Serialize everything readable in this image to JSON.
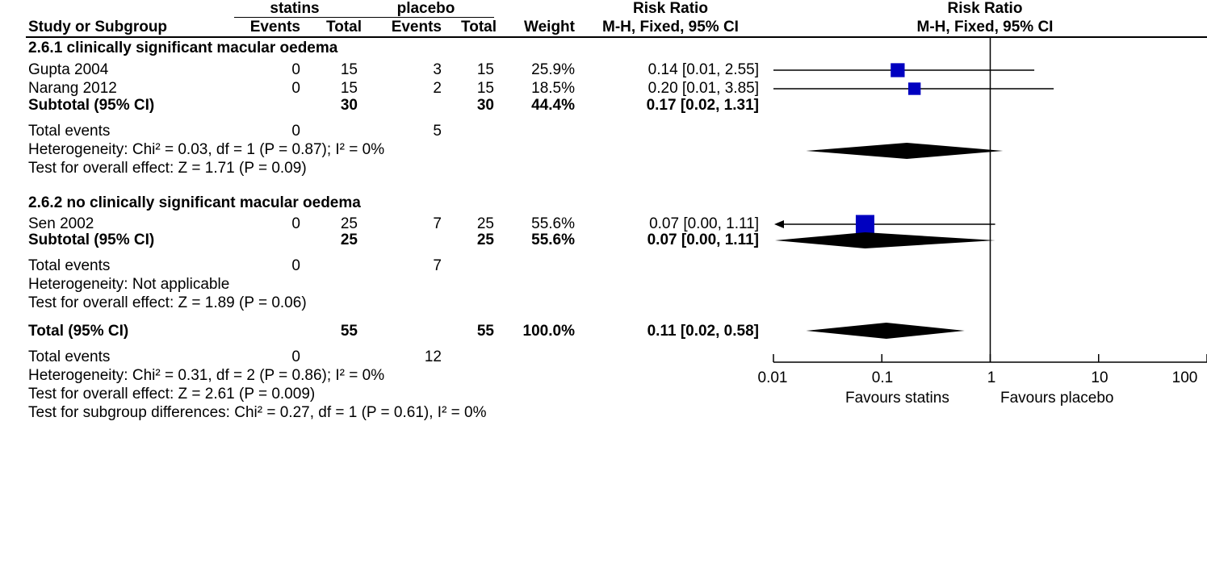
{
  "header": {
    "group1": "statins",
    "group2": "placebo",
    "rr_col_title": "Risk Ratio",
    "rr_col_method": "M-H, Fixed, 95% CI",
    "plot_title": "Risk Ratio",
    "plot_method": "M-H, Fixed, 95% CI",
    "study_col": "Study or Subgroup",
    "events1": "Events",
    "total1": "Total",
    "events2": "Events",
    "total2": "Total",
    "weight": "Weight"
  },
  "subgroup1": {
    "title": "2.6.1 clinically significant macular oedema",
    "studies": [
      {
        "name": "Gupta 2004",
        "e1": "0",
        "t1": "15",
        "e2": "3",
        "t2": "15",
        "w": "25.9%",
        "ci": "0.14 [0.01, 2.55]"
      },
      {
        "name": "Narang 2012",
        "e1": "0",
        "t1": "15",
        "e2": "2",
        "t2": "15",
        "w": "18.5%",
        "ci": "0.20 [0.01, 3.85]"
      }
    ],
    "subtotal": {
      "label": "Subtotal (95% CI)",
      "t1": "30",
      "t2": "30",
      "w": "44.4%",
      "ci": "0.17 [0.02, 1.31]"
    },
    "total_events": {
      "label": "Total events",
      "e1": "0",
      "e2": "5"
    },
    "heterogeneity": "Heterogeneity: Chi² = 0.03, df = 1 (P = 0.87); I² = 0%",
    "overall": "Test for overall effect: Z = 1.71 (P = 0.09)"
  },
  "subgroup2": {
    "title": "2.6.2 no clinically significant macular oedema",
    "studies": [
      {
        "name": "Sen 2002",
        "e1": "0",
        "t1": "25",
        "e2": "7",
        "t2": "25",
        "w": "55.6%",
        "ci": "0.07 [0.00, 1.11]"
      }
    ],
    "subtotal": {
      "label": "Subtotal (95% CI)",
      "t1": "25",
      "t2": "25",
      "w": "55.6%",
      "ci": "0.07 [0.00, 1.11]"
    },
    "total_events": {
      "label": "Total events",
      "e1": "0",
      "e2": "7"
    },
    "heterogeneity": "Heterogeneity: Not applicable",
    "overall": "Test for overall effect: Z = 1.89 (P = 0.06)"
  },
  "total": {
    "label": "Total (95% CI)",
    "t1": "55",
    "t2": "55",
    "w": "100.0%",
    "ci": "0.11 [0.02, 0.58]",
    "total_events": {
      "label": "Total events",
      "e1": "0",
      "e2": "12"
    },
    "heterogeneity": "Heterogeneity: Chi² = 0.31, df = 2 (P = 0.86); I² = 0%",
    "overall": "Test for overall effect: Z = 2.61 (P = 0.009)",
    "subgroup_diff": "Test for subgroup differences: Chi² = 0.27, df = 1 (P = 0.61), I² = 0%"
  },
  "axis": {
    "ticks": [
      "0.01",
      "0.1",
      "1",
      "10",
      "100"
    ],
    "favours_left": "Favours statins",
    "favours_right": "Favours placebo"
  },
  "colors": {
    "marker": "#0000c0",
    "diamond": "#000000",
    "line": "#000000"
  },
  "chart_data": {
    "type": "forest",
    "scale": "log",
    "xlim": [
      0.01,
      100
    ],
    "null_line": 1,
    "studies": [
      {
        "label": "Gupta 2004",
        "est": 0.14,
        "lo": 0.01,
        "hi": 2.55,
        "weight": 25.9
      },
      {
        "label": "Narang 2012",
        "est": 0.2,
        "lo": 0.01,
        "hi": 3.85,
        "weight": 18.5
      },
      {
        "label": "Sen 2002",
        "est": 0.07,
        "lo": 0.0,
        "hi": 1.11,
        "weight": 55.6
      }
    ],
    "pooled": [
      {
        "label": "Subtotal (95% CI)",
        "est": 0.17,
        "lo": 0.02,
        "hi": 1.31
      },
      {
        "label": "Subtotal (95% CI)",
        "est": 0.07,
        "lo": 0.0,
        "hi": 1.11
      },
      {
        "label": "Total (95% CI)",
        "est": 0.11,
        "lo": 0.02,
        "hi": 0.58
      }
    ]
  }
}
